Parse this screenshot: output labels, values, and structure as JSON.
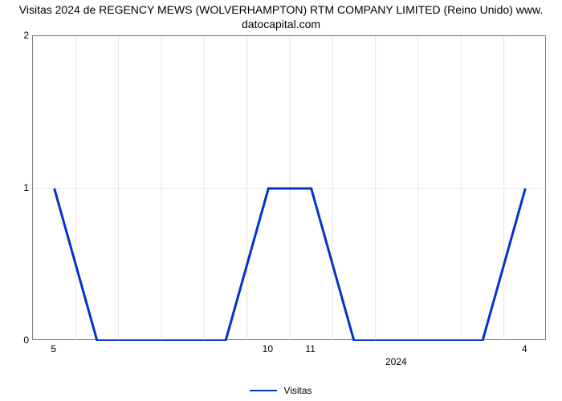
{
  "title_line1": "Visitas 2024 de REGENCY MEWS (WOLVERHAMPTON) RTM COMPANY LIMITED (Reino Unido) www.",
  "title_line2": "datocapital.com",
  "chart": {
    "type": "line",
    "series_color": "#0033cc",
    "series_stroke_width": 3,
    "background_color": "#ffffff",
    "grid_color": "#e5e5e5",
    "axis_color": "#7f7f7f",
    "title_fontsize": 14,
    "tick_fontsize": 12,
    "ylim": [
      0,
      2
    ],
    "yticks": [
      0,
      1,
      2
    ],
    "y_grid_at": [
      1,
      2
    ],
    "n_x_slots": 12,
    "x_grid_cols": [
      1,
      2,
      3,
      4,
      5,
      6,
      7,
      8,
      9,
      10,
      11
    ],
    "x_tick_labels": [
      {
        "col": 0,
        "label": "5"
      },
      {
        "col": 5,
        "label": "10"
      },
      {
        "col": 6,
        "label": "11"
      },
      {
        "col": 11,
        "label": "4"
      }
    ],
    "x_secondary_tick": {
      "col": 8,
      "label": "2024"
    },
    "data_y": [
      1,
      0,
      0,
      0,
      0,
      1,
      1,
      0,
      0,
      0,
      0,
      1
    ],
    "legend_label": "Visitas"
  }
}
